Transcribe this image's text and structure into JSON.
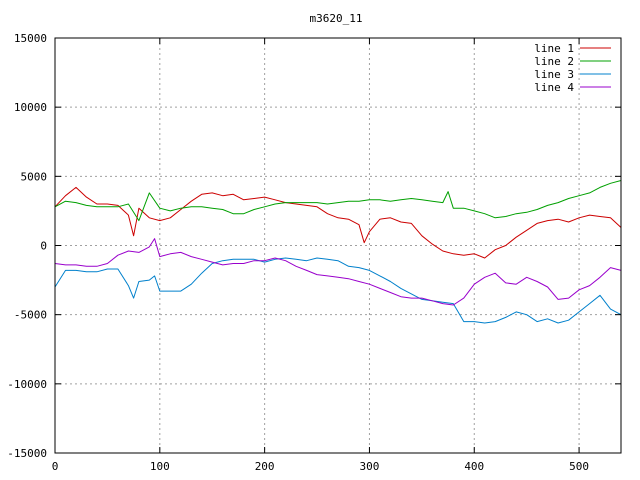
{
  "chart_data": {
    "type": "line",
    "title": "m3620_11",
    "xlabel": "",
    "ylabel": "",
    "xlim": [
      0,
      540
    ],
    "ylim": [
      -15000,
      15000
    ],
    "xticks": [
      0,
      100,
      200,
      300,
      400,
      500
    ],
    "yticks": [
      -15000,
      -10000,
      -5000,
      0,
      5000,
      10000,
      15000
    ],
    "xtick_labels": [
      "0",
      "100",
      "200",
      "300",
      "400",
      "500"
    ],
    "ytick_labels": [
      "-15000",
      "-10000",
      "-5000",
      "0",
      "5000",
      "10000",
      "15000"
    ],
    "grid": true,
    "legend_position": "top-right",
    "series": [
      {
        "name": "line 1",
        "color": "#cc0000",
        "x": [
          0,
          10,
          20,
          30,
          40,
          50,
          60,
          70,
          75,
          80,
          90,
          100,
          110,
          120,
          130,
          140,
          150,
          160,
          170,
          180,
          190,
          200,
          210,
          220,
          230,
          240,
          250,
          260,
          270,
          280,
          290,
          295,
          300,
          310,
          320,
          330,
          340,
          350,
          360,
          370,
          380,
          390,
          400,
          410,
          420,
          430,
          440,
          450,
          460,
          470,
          480,
          490,
          500,
          510,
          520,
          530,
          540
        ],
        "y": [
          2800,
          3600,
          4200,
          3500,
          3000,
          3000,
          2900,
          2200,
          700,
          2700,
          2000,
          1800,
          2000,
          2600,
          3200,
          3700,
          3800,
          3600,
          3700,
          3300,
          3400,
          3500,
          3300,
          3100,
          3000,
          2900,
          2800,
          2300,
          2000,
          1900,
          1500,
          200,
          1000,
          1900,
          2000,
          1700,
          1600,
          700,
          100,
          -400,
          -600,
          -700,
          -600,
          -900,
          -300,
          0,
          600,
          1100,
          1600,
          1800,
          1900,
          1700,
          2000,
          2200,
          2100,
          2000,
          1300
        ]
      },
      {
        "name": "line 2",
        "color": "#00a000",
        "x": [
          0,
          10,
          20,
          30,
          40,
          50,
          60,
          70,
          80,
          90,
          100,
          110,
          120,
          130,
          140,
          150,
          160,
          170,
          180,
          190,
          200,
          210,
          220,
          230,
          240,
          250,
          260,
          270,
          280,
          290,
          300,
          310,
          320,
          330,
          340,
          350,
          360,
          370,
          375,
          380,
          390,
          400,
          410,
          420,
          430,
          440,
          450,
          460,
          470,
          480,
          490,
          500,
          510,
          520,
          530,
          540
        ],
        "y": [
          2800,
          3200,
          3100,
          2900,
          2800,
          2800,
          2800,
          3000,
          1800,
          3800,
          2700,
          2500,
          2700,
          2800,
          2800,
          2700,
          2600,
          2300,
          2300,
          2600,
          2800,
          3000,
          3100,
          3100,
          3100,
          3100,
          3000,
          3100,
          3200,
          3200,
          3300,
          3300,
          3200,
          3300,
          3400,
          3300,
          3200,
          3100,
          3900,
          2700,
          2700,
          2500,
          2300,
          2000,
          2100,
          2300,
          2400,
          2600,
          2900,
          3100,
          3400,
          3600,
          3800,
          4200,
          4500,
          4700
        ]
      },
      {
        "name": "line 3",
        "color": "#0080cc",
        "x": [
          0,
          10,
          20,
          30,
          40,
          50,
          60,
          70,
          75,
          80,
          90,
          95,
          100,
          110,
          120,
          130,
          140,
          150,
          160,
          170,
          180,
          190,
          200,
          210,
          220,
          230,
          240,
          250,
          260,
          270,
          280,
          290,
          300,
          310,
          320,
          330,
          340,
          350,
          360,
          370,
          380,
          390,
          400,
          410,
          420,
          430,
          440,
          450,
          460,
          470,
          480,
          490,
          500,
          510,
          520,
          530,
          540
        ],
        "y": [
          -3000,
          -1800,
          -1800,
          -1900,
          -1900,
          -1700,
          -1700,
          -2900,
          -3800,
          -2600,
          -2500,
          -2200,
          -3300,
          -3300,
          -3300,
          -2800,
          -2000,
          -1300,
          -1100,
          -1000,
          -1000,
          -1000,
          -1200,
          -1000,
          -900,
          -1000,
          -1100,
          -900,
          -1000,
          -1100,
          -1500,
          -1600,
          -1800,
          -2200,
          -2600,
          -3100,
          -3500,
          -3900,
          -4000,
          -4100,
          -4200,
          -5500,
          -5500,
          -5600,
          -5500,
          -5200,
          -4800,
          -5000,
          -5500,
          -5300,
          -5600,
          -5400,
          -4800,
          -4200,
          -3600,
          -4600,
          -5000
        ]
      },
      {
        "name": "line 4",
        "color": "#9900cc",
        "x": [
          0,
          10,
          20,
          30,
          40,
          50,
          60,
          70,
          80,
          90,
          95,
          100,
          110,
          120,
          130,
          140,
          150,
          160,
          170,
          180,
          190,
          200,
          210,
          220,
          230,
          240,
          250,
          260,
          270,
          280,
          290,
          300,
          310,
          320,
          330,
          340,
          350,
          360,
          370,
          380,
          390,
          400,
          410,
          420,
          430,
          440,
          450,
          460,
          470,
          480,
          490,
          500,
          510,
          520,
          530,
          540
        ],
        "y": [
          -1300,
          -1400,
          -1400,
          -1500,
          -1500,
          -1300,
          -700,
          -400,
          -500,
          -100,
          500,
          -800,
          -600,
          -500,
          -800,
          -1000,
          -1200,
          -1400,
          -1300,
          -1300,
          -1100,
          -1100,
          -900,
          -1100,
          -1500,
          -1800,
          -2100,
          -2200,
          -2300,
          -2400,
          -2600,
          -2800,
          -3100,
          -3400,
          -3700,
          -3800,
          -3800,
          -4000,
          -4200,
          -4300,
          -3800,
          -2800,
          -2300,
          -2000,
          -2700,
          -2800,
          -2300,
          -2600,
          -3000,
          -3900,
          -3800,
          -3200,
          -2900,
          -2300,
          -1600,
          -1800
        ]
      }
    ]
  }
}
